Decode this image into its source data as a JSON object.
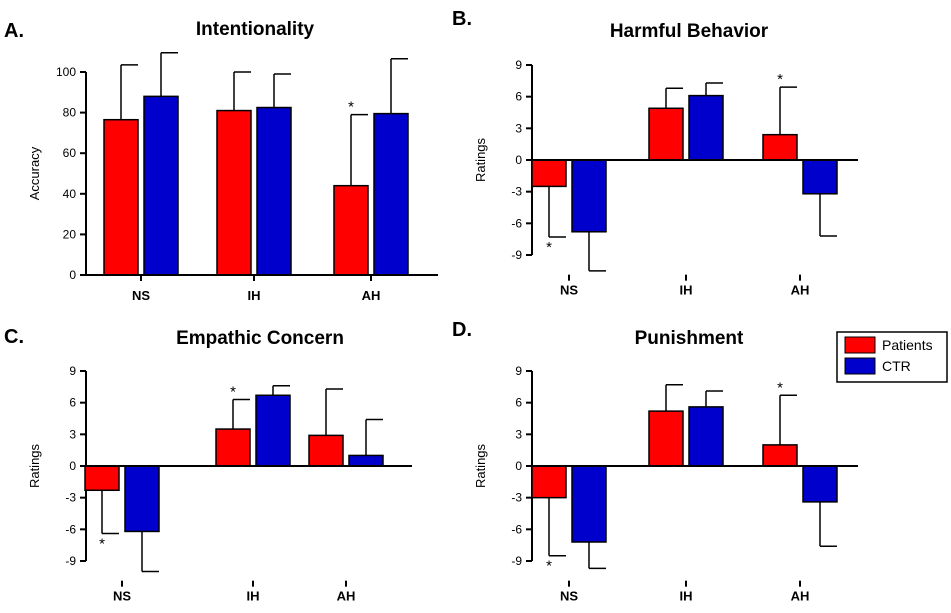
{
  "colors": {
    "patients": "#ff0000",
    "ctr": "#0000cc",
    "axis": "#000000"
  },
  "legend": [
    {
      "key": "patients",
      "label": "Patients"
    },
    {
      "key": "ctr",
      "label": "CTR"
    }
  ],
  "chart_data": [
    {
      "type": "bar",
      "letter": "A.",
      "title": "Intentionality",
      "ylabel": "Accuracy",
      "ylim": [
        0,
        110
      ],
      "yticks": [
        0,
        20,
        40,
        60,
        80,
        100
      ],
      "ytick_labels": [
        "0",
        "20",
        "40",
        "60",
        "80",
        "100"
      ],
      "categories": [
        "NS",
        "IH",
        "AH"
      ],
      "series": [
        {
          "name": "Patients",
          "values": [
            76.5,
            81,
            44
          ],
          "errors": [
            27,
            19,
            35
          ]
        },
        {
          "name": "CTR",
          "values": [
            88,
            82.5,
            79.5
          ],
          "errors": [
            21.5,
            16.5,
            27
          ]
        }
      ],
      "significance": [
        {
          "category": "AH",
          "series": "Patients",
          "symbol": "*"
        }
      ]
    },
    {
      "type": "bar",
      "letter": "B.",
      "title": "Harmful Behavior",
      "ylabel": "Ratings",
      "ylim": [
        -12,
        9
      ],
      "yticks": [
        -9,
        -6,
        -3,
        0,
        3,
        6,
        9
      ],
      "ytick_labels": [
        "-9",
        "-6",
        "-3",
        "0",
        "3",
        "6",
        "9"
      ],
      "categories": [
        "NS",
        "IH",
        "AH"
      ],
      "series": [
        {
          "name": "Patients",
          "values": [
            -2.5,
            4.9,
            2.4
          ],
          "errors": [
            4.8,
            1.9,
            4.5
          ]
        },
        {
          "name": "CTR",
          "values": [
            -6.8,
            6.1,
            -3.2
          ],
          "errors": [
            3.7,
            1.2,
            4.0
          ]
        }
      ],
      "significance": [
        {
          "category": "NS",
          "series": "Patients",
          "symbol": "*"
        },
        {
          "category": "AH",
          "series": "Patients",
          "symbol": "*"
        }
      ]
    },
    {
      "type": "bar",
      "letter": "C.",
      "title": "Empathic Concern",
      "ylabel": "Ratings",
      "ylim": [
        -12,
        9
      ],
      "yticks": [
        -9,
        -6,
        -3,
        0,
        3,
        6,
        9
      ],
      "ytick_labels": [
        "-9",
        "-6",
        "-3",
        "0",
        "3",
        "6",
        "9"
      ],
      "categories": [
        "NS",
        "IH",
        "AH"
      ],
      "series": [
        {
          "name": "Patients",
          "values": [
            -2.3,
            3.5,
            2.9
          ],
          "errors": [
            4.1,
            2.8,
            4.4
          ]
        },
        {
          "name": "CTR",
          "values": [
            -6.2,
            6.7,
            1.0
          ],
          "errors": [
            3.8,
            0.9,
            3.4
          ]
        }
      ],
      "significance": [
        {
          "category": "NS",
          "series": "Patients",
          "symbol": "*"
        },
        {
          "category": "IH",
          "series": "Patients",
          "symbol": "*"
        }
      ]
    },
    {
      "type": "bar",
      "letter": "D.",
      "title": "Punishment",
      "ylabel": "Ratings",
      "ylim": [
        -12,
        9
      ],
      "yticks": [
        -9,
        -6,
        -3,
        0,
        3,
        6,
        9
      ],
      "ytick_labels": [
        "-9",
        "-6",
        "-3",
        "0",
        "3",
        "6",
        "9"
      ],
      "categories": [
        "NS",
        "IH",
        "AH"
      ],
      "series": [
        {
          "name": "Patients",
          "values": [
            -3.0,
            5.2,
            2.0
          ],
          "errors": [
            5.5,
            2.5,
            4.7
          ]
        },
        {
          "name": "CTR",
          "values": [
            -7.2,
            5.6,
            -3.4
          ],
          "errors": [
            2.5,
            1.5,
            4.2
          ]
        }
      ],
      "significance": [
        {
          "category": "NS",
          "series": "Patients",
          "symbol": "*"
        },
        {
          "category": "AH",
          "series": "Patients",
          "symbol": "*"
        }
      ]
    }
  ]
}
